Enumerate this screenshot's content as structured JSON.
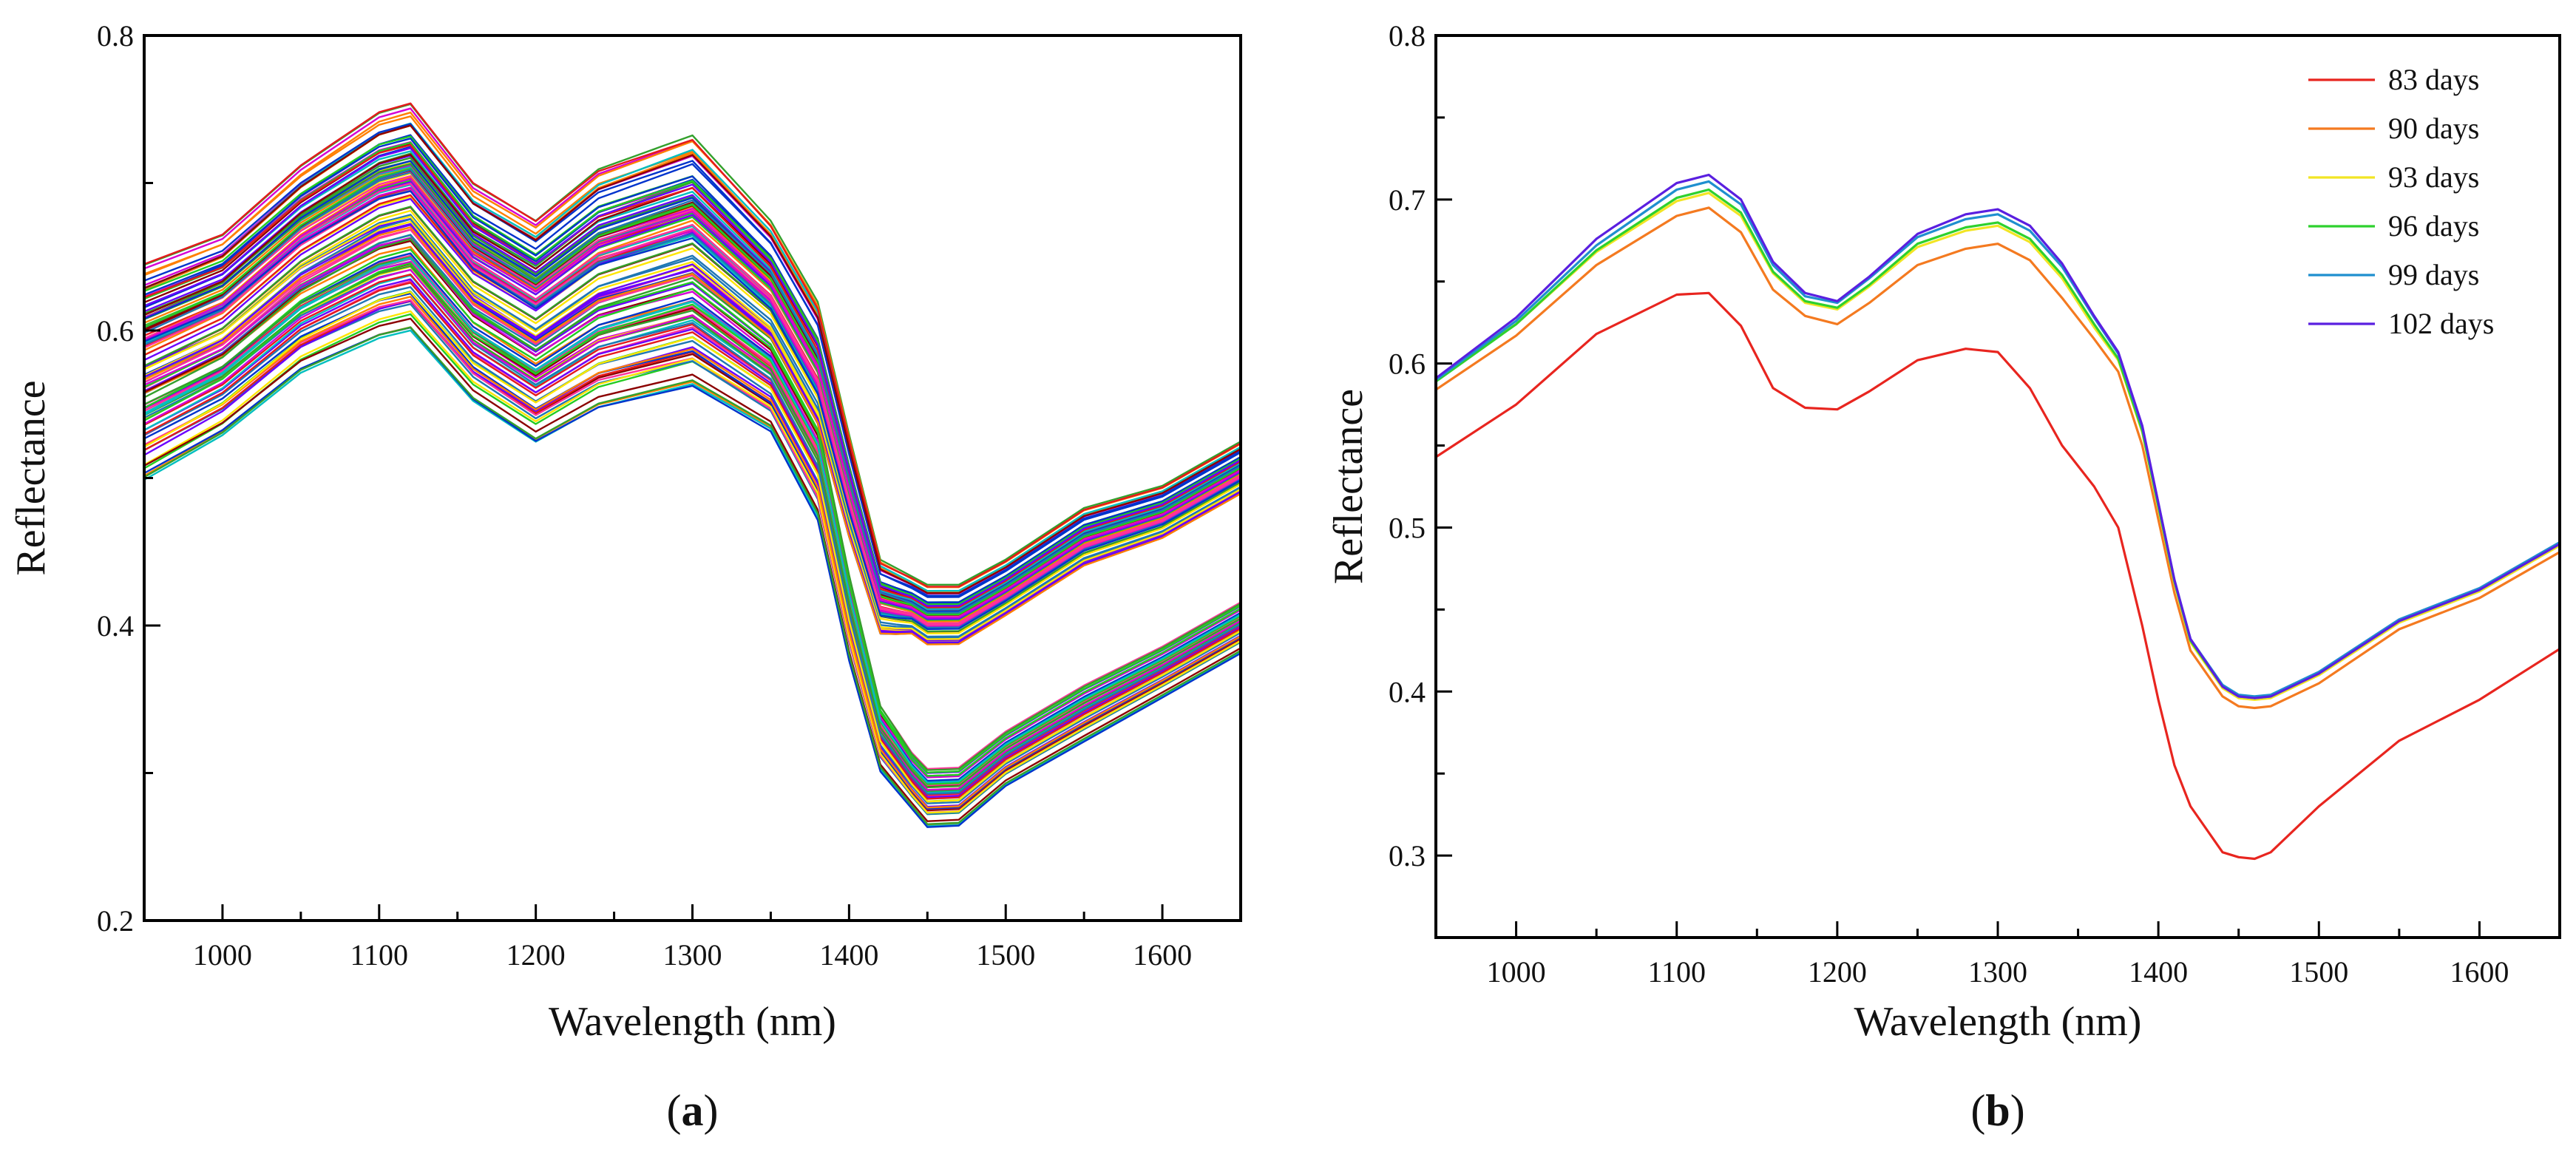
{
  "chart_data": [
    {
      "panel_label": "a",
      "type": "line",
      "xlabel": "Wavelength (nm)",
      "ylabel": "Reflectance",
      "xlim": [
        950,
        1650
      ],
      "ylim": [
        0.2,
        0.8
      ],
      "xticks": [
        1000,
        1100,
        1200,
        1300,
        1400,
        1500,
        1600
      ],
      "yticks": [
        0.2,
        0.4,
        0.6,
        0.8
      ],
      "ytick_labels": [
        "0.2",
        "0.4",
        "0.6",
        "0.8"
      ],
      "legend": "none",
      "description_series_count": 120,
      "envelope": {
        "x": [
          950,
          1000,
          1050,
          1100,
          1120,
          1160,
          1200,
          1240,
          1300,
          1350,
          1380,
          1400,
          1420,
          1450,
          1470,
          1500,
          1550,
          1600,
          1650
        ],
        "upper": [
          0.645,
          0.665,
          0.712,
          0.748,
          0.754,
          0.7,
          0.675,
          0.71,
          0.733,
          0.675,
          0.62,
          0.53,
          0.445,
          0.428,
          0.428,
          0.445,
          0.48,
          0.495,
          0.525
        ],
        "lower": [
          0.498,
          0.528,
          0.57,
          0.593,
          0.598,
          0.55,
          0.522,
          0.545,
          0.56,
          0.53,
          0.47,
          0.375,
          0.3,
          0.262,
          0.263,
          0.29,
          0.32,
          0.35,
          0.38
        ]
      },
      "palette": [
        "#e41a1c",
        "#ff7f00",
        "#ffe600",
        "#22cc22",
        "#1f77b4",
        "#6a00ff",
        "#d400d4",
        "#00bfbf",
        "#ff3399",
        "#0033cc",
        "#8b0000",
        "#33a02c"
      ]
    },
    {
      "panel_label": "b",
      "type": "line",
      "xlabel": "Wavelength (nm)",
      "ylabel": "Reflectance",
      "xlim": [
        950,
        1650
      ],
      "ylim": [
        0.25,
        0.8
      ],
      "xticks": [
        1000,
        1100,
        1200,
        1300,
        1400,
        1500,
        1600
      ],
      "yticks": [
        0.3,
        0.4,
        0.5,
        0.6,
        0.7,
        0.8
      ],
      "ytick_labels": [
        "0.3",
        "0.4",
        "0.5",
        "0.6",
        "0.7",
        "0.8"
      ],
      "legend": "top-right",
      "x": [
        950,
        1000,
        1050,
        1100,
        1120,
        1140,
        1160,
        1180,
        1200,
        1220,
        1250,
        1280,
        1300,
        1320,
        1340,
        1360,
        1375,
        1390,
        1400,
        1410,
        1420,
        1440,
        1450,
        1460,
        1470,
        1500,
        1550,
        1600,
        1650
      ],
      "series": [
        {
          "name": "83 days",
          "color": "#e8251f",
          "values": [
            0.543,
            0.575,
            0.618,
            0.642,
            0.643,
            0.623,
            0.585,
            0.573,
            0.572,
            0.583,
            0.602,
            0.609,
            0.607,
            0.585,
            0.55,
            0.525,
            0.5,
            0.44,
            0.395,
            0.355,
            0.33,
            0.302,
            0.299,
            0.298,
            0.302,
            0.33,
            0.37,
            0.395,
            0.426
          ]
        },
        {
          "name": "90 days",
          "color": "#f47a20",
          "values": [
            0.584,
            0.617,
            0.66,
            0.69,
            0.695,
            0.68,
            0.645,
            0.629,
            0.624,
            0.637,
            0.66,
            0.67,
            0.673,
            0.663,
            0.64,
            0.615,
            0.595,
            0.55,
            0.505,
            0.46,
            0.425,
            0.397,
            0.391,
            0.39,
            0.391,
            0.405,
            0.438,
            0.457,
            0.485
          ]
        },
        {
          "name": "93 days",
          "color": "#f2e524",
          "values": [
            0.591,
            0.624,
            0.668,
            0.699,
            0.704,
            0.69,
            0.655,
            0.637,
            0.633,
            0.647,
            0.671,
            0.681,
            0.684,
            0.674,
            0.652,
            0.622,
            0.602,
            0.558,
            0.512,
            0.466,
            0.43,
            0.402,
            0.396,
            0.395,
            0.396,
            0.41,
            0.442,
            0.461,
            0.489
          ]
        },
        {
          "name": "96 days",
          "color": "#2ed12e",
          "values": [
            0.589,
            0.624,
            0.669,
            0.701,
            0.706,
            0.692,
            0.656,
            0.638,
            0.634,
            0.648,
            0.673,
            0.683,
            0.686,
            0.676,
            0.654,
            0.624,
            0.603,
            0.559,
            0.513,
            0.467,
            0.431,
            0.403,
            0.397,
            0.396,
            0.397,
            0.411,
            0.443,
            0.462,
            0.49
          ]
        },
        {
          "name": "99 days",
          "color": "#1f8fcf",
          "values": [
            0.59,
            0.626,
            0.672,
            0.706,
            0.711,
            0.697,
            0.66,
            0.641,
            0.637,
            0.652,
            0.677,
            0.688,
            0.691,
            0.681,
            0.659,
            0.628,
            0.606,
            0.561,
            0.515,
            0.468,
            0.432,
            0.404,
            0.398,
            0.397,
            0.398,
            0.412,
            0.444,
            0.463,
            0.491
          ]
        },
        {
          "name": "102 days",
          "color": "#5a1fe0",
          "values": [
            0.591,
            0.628,
            0.676,
            0.71,
            0.715,
            0.7,
            0.662,
            0.643,
            0.638,
            0.653,
            0.679,
            0.691,
            0.694,
            0.684,
            0.661,
            0.629,
            0.607,
            0.562,
            0.515,
            0.468,
            0.432,
            0.403,
            0.397,
            0.396,
            0.397,
            0.411,
            0.443,
            0.462,
            0.49
          ]
        }
      ]
    }
  ]
}
